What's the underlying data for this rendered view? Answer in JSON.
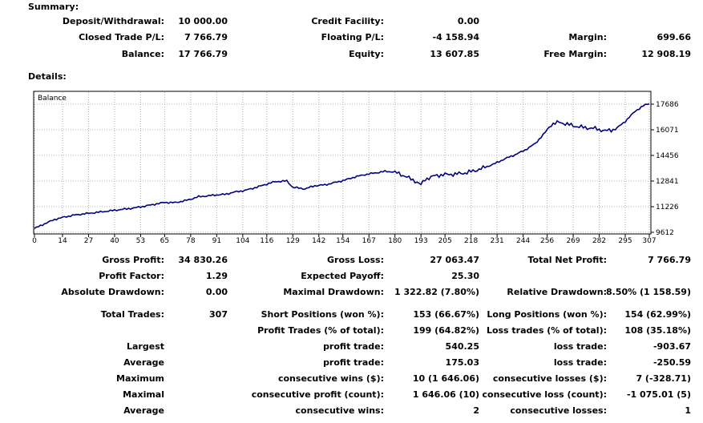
{
  "summary": {
    "heading": "Summary:",
    "deposit_label": "Deposit/Withdrawal:",
    "deposit_value": "10 000.00",
    "credit_label": "Credit Facility:",
    "credit_value": "0.00",
    "closed_pl_label": "Closed Trade P/L:",
    "closed_pl_value": "7 766.79",
    "floating_pl_label": "Floating P/L:",
    "floating_pl_value": "-4 158.94",
    "margin_label": "Margin:",
    "margin_value": "699.66",
    "balance_label": "Balance:",
    "balance_value": "17 766.79",
    "equity_label": "Equity:",
    "equity_value": "13 607.85",
    "free_margin_label": "Free Margin:",
    "free_margin_value": "12 908.19"
  },
  "details": {
    "heading": "Details:",
    "gross_profit_label": "Gross Profit:",
    "gross_profit_value": "34 830.26",
    "gross_loss_label": "Gross Loss:",
    "gross_loss_value": "27 063.47",
    "total_net_label": "Total Net Profit:",
    "total_net_value": "7 766.79",
    "profit_factor_label": "Profit Factor:",
    "profit_factor_value": "1.29",
    "expected_payoff_label": "Expected Payoff:",
    "expected_payoff_value": "25.30",
    "abs_dd_label": "Absolute Drawdown:",
    "abs_dd_value": "0.00",
    "max_dd_label": "Maximal Drawdown:",
    "max_dd_value": "1 322.82 (7.80%)",
    "rel_dd_label": "Relative Drawdown:",
    "rel_dd_value": "8.50% (1 158.59)",
    "total_trades_label": "Total Trades:",
    "total_trades_value": "307",
    "short_label": "Short Positions (won %):",
    "short_value": "153 (66.67%)",
    "long_label": "Long Positions (won %):",
    "long_value": "154 (62.99%)",
    "profit_trades_label": "Profit Trades (% of total):",
    "profit_trades_value": "199 (64.82%)",
    "loss_trades_label": "Loss trades (% of total):",
    "loss_trades_value": "108 (35.18%)",
    "largest_label": "Largest",
    "largest_profit_label": "profit trade:",
    "largest_profit_value": "540.25",
    "largest_loss_label": "loss trade:",
    "largest_loss_value": "-903.67",
    "average_label": "Average",
    "average_profit_label": "profit trade:",
    "average_profit_value": "175.03",
    "average_loss_label": "loss trade:",
    "average_loss_value": "-250.59",
    "maximum_label": "Maximum",
    "max_wins_label": "consecutive wins ($):",
    "max_wins_value": "10 (1 646.06)",
    "max_losses_label": "consecutive losses ($):",
    "max_losses_value": "7 (-328.71)",
    "maximal_label": "Maximal",
    "maximal_profit_label": "consecutive profit (count):",
    "maximal_profit_value": "1 646.06 (10)",
    "maximal_loss_label": "consecutive loss (count):",
    "maximal_loss_value": "-1 075.01 (5)",
    "average2_label": "Average",
    "avg_cons_wins_label": "consecutive wins:",
    "avg_cons_wins_value": "2",
    "avg_cons_losses_label": "consecutive losses:",
    "avg_cons_losses_value": "1"
  },
  "chart_data": {
    "type": "line",
    "legend": "Balance",
    "line_color": "#000080",
    "grid": true,
    "xlim": [
      0,
      307
    ],
    "ylim": [
      9612,
      17686
    ],
    "x_ticks": [
      0,
      14,
      27,
      40,
      53,
      65,
      78,
      91,
      104,
      116,
      129,
      142,
      154,
      167,
      180,
      193,
      205,
      218,
      231,
      244,
      256,
      269,
      282,
      295,
      307
    ],
    "y_ticks": [
      9612,
      11226,
      12841,
      14456,
      16071,
      17686
    ],
    "series": [
      {
        "x": [
          0,
          5,
          10,
          15,
          20,
          25,
          30,
          40,
          50,
          55,
          60,
          65,
          70,
          75,
          78,
          82,
          86,
          90,
          95,
          100,
          105,
          110,
          116,
          120,
          126,
          129,
          135,
          140,
          145,
          150,
          155,
          160,
          165,
          170,
          175,
          180,
          185,
          190,
          193,
          195,
          200,
          205,
          210,
          215,
          220,
          225,
          230,
          235,
          240,
          245,
          250,
          255,
          258,
          262,
          266,
          270,
          275,
          280,
          285,
          290,
          295,
          300,
          305,
          307
        ],
        "y": [
          9850,
          10150,
          10420,
          10580,
          10700,
          10780,
          10850,
          11000,
          11150,
          11260,
          11380,
          11500,
          11480,
          11600,
          11700,
          11860,
          11900,
          11960,
          12000,
          12150,
          12250,
          12420,
          12650,
          12800,
          12850,
          12450,
          12350,
          12550,
          12600,
          12750,
          12900,
          13100,
          13250,
          13350,
          13450,
          13420,
          13150,
          12850,
          12600,
          12950,
          13180,
          13250,
          13280,
          13350,
          13500,
          13700,
          13950,
          14250,
          14500,
          14800,
          15200,
          15900,
          16400,
          16550,
          16420,
          16300,
          16200,
          16150,
          16000,
          16100,
          16600,
          17250,
          17650,
          17700
        ]
      }
    ]
  }
}
